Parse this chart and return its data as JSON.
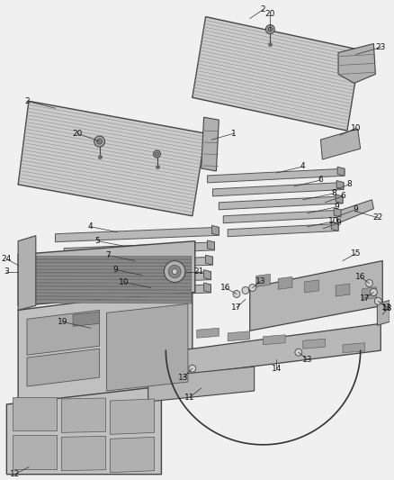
{
  "bg_color": "#f0f0f0",
  "fig_w": 4.38,
  "fig_h": 5.33,
  "dpi": 100,
  "floor_panel_color": "#c8c8c8",
  "floor_rib_color": "#888888",
  "rail_color": "#b8b8b8",
  "rail_edge": "#555555",
  "headboard_color": "#c0c0c0",
  "panel_color": "#b8b8b8",
  "text_color": "#111111",
  "line_color": "#333333",
  "label_fontsize": 6.5
}
